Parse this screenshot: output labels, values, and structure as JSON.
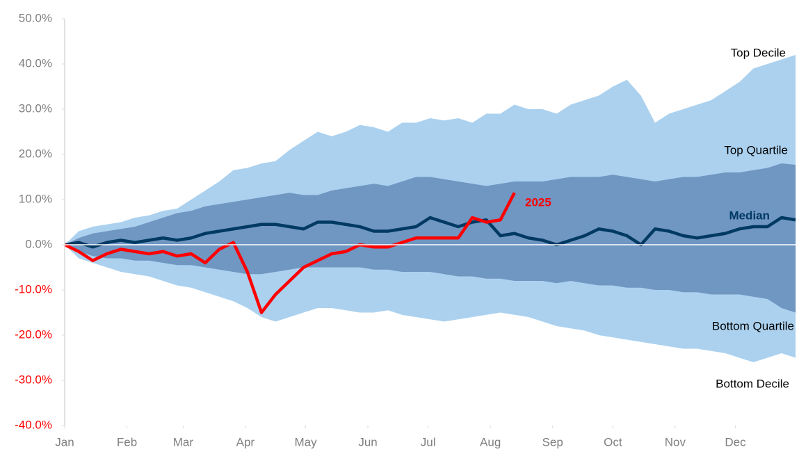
{
  "chart_data": {
    "type": "line",
    "x": [
      0,
      7,
      14,
      21,
      28,
      35,
      42,
      49,
      56,
      63,
      70,
      77,
      84,
      91,
      98,
      105,
      112,
      119,
      126,
      133,
      140,
      147,
      154,
      161,
      168,
      175,
      182,
      189,
      196,
      203,
      210,
      217,
      224,
      231,
      238,
      245,
      252,
      259,
      266,
      273,
      280,
      287,
      294,
      301,
      308,
      315,
      322,
      329,
      336,
      343,
      350,
      357,
      364
    ],
    "xlim": [
      0,
      365
    ],
    "xticks": [
      {
        "value": 0,
        "label": "Jan"
      },
      {
        "value": 31,
        "label": "Feb"
      },
      {
        "value": 59,
        "label": "Mar"
      },
      {
        "value": 90,
        "label": "Apr"
      },
      {
        "value": 120,
        "label": "May"
      },
      {
        "value": 151,
        "label": "Jun"
      },
      {
        "value": 181,
        "label": "Jul"
      },
      {
        "value": 212,
        "label": "Aug"
      },
      {
        "value": 243,
        "label": "Sep"
      },
      {
        "value": 273,
        "label": "Oct"
      },
      {
        "value": 304,
        "label": "Nov"
      },
      {
        "value": 334,
        "label": "Dec"
      }
    ],
    "ylim": [
      -40,
      50
    ],
    "yticks": [
      {
        "value": -40,
        "label": "-40.0%"
      },
      {
        "value": -30,
        "label": "-30.0%"
      },
      {
        "value": -20,
        "label": "-20.0%"
      },
      {
        "value": -10,
        "label": "-10.0%"
      },
      {
        "value": 0,
        "label": "0.0%"
      },
      {
        "value": 10,
        "label": "10.0%"
      },
      {
        "value": 20,
        "label": "20.0%"
      },
      {
        "value": 30,
        "label": "30.0%"
      },
      {
        "value": 40,
        "label": "40.0%"
      },
      {
        "value": 50,
        "label": "50.0%"
      }
    ],
    "tick_label_color": "#7f7f7f",
    "negative_tick_label_color": "#ff0000",
    "series": [
      {
        "name": "Top Decile",
        "style": "area",
        "color": "#abd1ef",
        "label_color": "#000000",
        "values": [
          0,
          3,
          4,
          4.5,
          5,
          6,
          6.5,
          7.5,
          8,
          10,
          12,
          14,
          16.5,
          17,
          18,
          18.5,
          21,
          23,
          25,
          24,
          25,
          26.5,
          26,
          25,
          27,
          27,
          28,
          27.5,
          28,
          27,
          29,
          29,
          31,
          30,
          30,
          29,
          31,
          32,
          33,
          35,
          36.5,
          33,
          27,
          29,
          30,
          31,
          32,
          34,
          36,
          39,
          40,
          41,
          42
        ]
      },
      {
        "name": "Bottom Decile",
        "style": "area",
        "color": "#abd1ef",
        "label_color": "#000000",
        "values": [
          0,
          -3,
          -4,
          -5,
          -6,
          -6.5,
          -7,
          -8,
          -9,
          -9.5,
          -10.5,
          -11.5,
          -12.5,
          -14,
          -16,
          -17,
          -16,
          -15,
          -14,
          -14,
          -14.5,
          -15,
          -15,
          -14.5,
          -15.5,
          -16,
          -16.5,
          -17,
          -16.5,
          -16,
          -15.5,
          -15,
          -15.5,
          -16,
          -17,
          -18,
          -18.5,
          -19,
          -20,
          -20.5,
          -21,
          -21.5,
          -22,
          -22.5,
          -23,
          -23,
          -23.5,
          -24,
          -25,
          -26,
          -25,
          -24,
          -25
        ]
      },
      {
        "name": "Top Quartile",
        "style": "area",
        "color": "#7096c2",
        "label_color": "#000000",
        "values": [
          0,
          1.5,
          2.5,
          3,
          3.5,
          4,
          5,
          6,
          7,
          7.5,
          8.5,
          9,
          9.5,
          10,
          10.5,
          11,
          11.5,
          11,
          11,
          12,
          12.5,
          13,
          13.5,
          13,
          14,
          15,
          15,
          14.5,
          14,
          13.5,
          13,
          13.5,
          14,
          14,
          14,
          14.5,
          15,
          15,
          15,
          15.5,
          15,
          14.5,
          14,
          14.5,
          15,
          15,
          15.5,
          16,
          16,
          16.5,
          17,
          18,
          17.7
        ]
      },
      {
        "name": "Bottom Quartile",
        "style": "area",
        "color": "#7096c2",
        "label_color": "#000000",
        "values": [
          0,
          -1.5,
          -2.5,
          -3,
          -3,
          -3.5,
          -3.5,
          -4,
          -4.5,
          -4.5,
          -5,
          -5.5,
          -6,
          -6.5,
          -6.5,
          -6,
          -5.5,
          -5,
          -5,
          -5,
          -5,
          -5,
          -5.5,
          -5.5,
          -6,
          -6,
          -6,
          -6.5,
          -7,
          -7,
          -7.5,
          -7.5,
          -8,
          -8,
          -8,
          -8.5,
          -8,
          -8.5,
          -9,
          -9,
          -9.5,
          -9.5,
          -10,
          -10,
          -10.5,
          -10.5,
          -11,
          -11,
          -11,
          -11.5,
          -12,
          -14,
          -15
        ]
      },
      {
        "name": "Median",
        "style": "line",
        "color": "#003a63",
        "label_color": "#003a63",
        "values": [
          0,
          0.5,
          -0.5,
          0.5,
          1,
          0.5,
          1,
          1.5,
          1,
          1.5,
          2.5,
          3,
          3.5,
          4,
          4.5,
          4.5,
          4,
          3.5,
          5,
          5,
          4.5,
          4,
          3,
          3,
          3.5,
          4,
          6,
          5,
          4,
          5,
          5.5,
          2,
          2.5,
          1.5,
          1,
          0,
          1,
          2,
          3.5,
          3,
          2,
          0,
          3.5,
          3,
          2,
          1.5,
          2,
          2.5,
          3.5,
          4,
          4,
          6,
          5.5
        ]
      },
      {
        "name": "2025",
        "style": "line",
        "color": "#ff0000",
        "label_color": "#ff0000",
        "values": [
          0,
          -1.5,
          -3.5,
          -2,
          -1,
          -1.5,
          -2,
          -1.5,
          -2.5,
          -2,
          -4,
          -1,
          0.5,
          -6,
          -15,
          -11,
          -8,
          -5,
          -3.5,
          -2,
          -1.5,
          0,
          -0.5,
          -0.5,
          0.5,
          1.5,
          1.5,
          1.5,
          1.5,
          6,
          5,
          5.5,
          11.5,
          null,
          null,
          null,
          null,
          null,
          null,
          null,
          null,
          null,
          null,
          null,
          null,
          null,
          null,
          null,
          null,
          null,
          null,
          null,
          null
        ]
      }
    ]
  }
}
